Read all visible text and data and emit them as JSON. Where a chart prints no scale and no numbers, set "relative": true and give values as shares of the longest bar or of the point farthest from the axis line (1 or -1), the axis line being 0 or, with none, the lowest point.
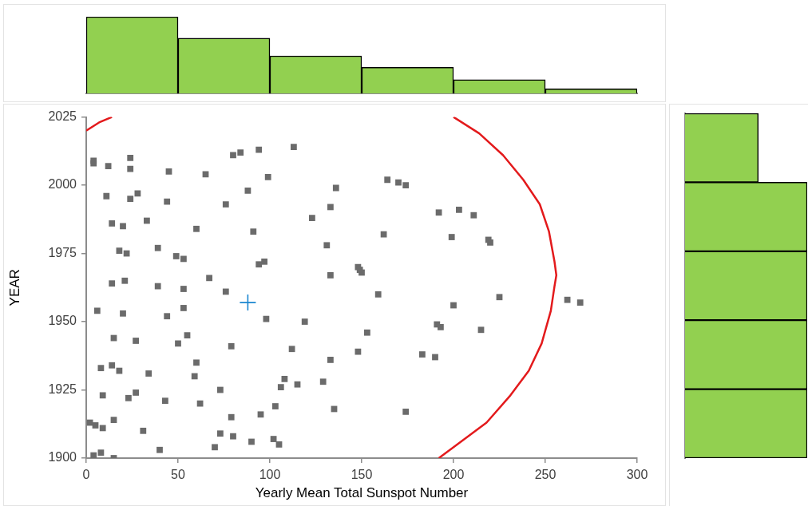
{
  "chart_data": [
    {
      "type": "bar",
      "categories": [
        null,
        null,
        null,
        null,
        null,
        null
      ],
      "values": [
        1,
        0.72,
        0.49,
        0.34,
        0.18,
        0.06
      ],
      "relative": true,
      "color": "#92d050"
    },
    {
      "type": "scatter",
      "xlabel": "Yearly Mean Total Sunspot Number",
      "ylabel": "YEAR",
      "xlim": [
        0,
        300
      ],
      "xticks": [
        0,
        50,
        100,
        150,
        200,
        250,
        300
      ],
      "ylim": [
        1900,
        2025
      ],
      "yticks": [
        1900,
        1925,
        1950,
        1975,
        2000,
        2025
      ],
      "grid": false,
      "legend": false,
      "series": [
        {
          "type": "scatter",
          "color": "#6b6b6b",
          "marker": "square",
          "x": [
            15,
            4,
            8,
            40,
            70,
            105,
            90,
            102,
            80,
            73,
            31,
            9,
            5,
            2,
            15,
            79,
            95,
            174,
            135,
            103,
            62,
            43,
            23,
            9,
            27,
            73,
            106,
            115,
            129,
            108,
            59,
            34,
            18,
            8,
            14,
            60,
            133,
            190,
            183,
            148,
            112,
            79,
            50,
            27,
            15,
            55,
            153,
            215,
            193,
            191,
            119,
            98,
            44,
            20,
            6,
            53,
            200,
            269,
            262,
            225,
            159,
            76,
            53,
            39,
            14,
            21,
            67,
            133,
            150,
            149,
            148,
            94,
            97,
            53,
            49,
            22,
            18,
            39,
            131,
            220,
            219,
            199,
            162,
            91,
            60,
            20,
            14,
            33,
            123,
            211,
            192,
            203,
            133,
            76,
            44,
            24,
            11,
            28,
            88,
            136,
            174,
            170,
            164,
            99,
            65,
            45,
            24,
            12,
            4,
            4,
            24,
            80,
            84,
            94,
            113
          ],
          "values": [
            1900,
            1901,
            1902,
            1903,
            1904,
            1905,
            1906,
            1907,
            1908,
            1909,
            1910,
            1911,
            1912,
            1913,
            1914,
            1915,
            1916,
            1917,
            1918,
            1919,
            1920,
            1921,
            1922,
            1923,
            1924,
            1925,
            1926,
            1927,
            1928,
            1929,
            1930,
            1931,
            1932,
            1933,
            1934,
            1935,
            1936,
            1937,
            1938,
            1939,
            1940,
            1941,
            1942,
            1943,
            1944,
            1945,
            1946,
            1947,
            1948,
            1949,
            1950,
            1951,
            1952,
            1953,
            1954,
            1955,
            1956,
            1957,
            1958,
            1959,
            1960,
            1961,
            1962,
            1963,
            1964,
            1965,
            1966,
            1967,
            1968,
            1969,
            1970,
            1971,
            1972,
            1973,
            1974,
            1975,
            1976,
            1977,
            1978,
            1979,
            1980,
            1981,
            1982,
            1983,
            1984,
            1985,
            1986,
            1987,
            1988,
            1989,
            1990,
            1991,
            1992,
            1993,
            1994,
            1995,
            1996,
            1997,
            1998,
            1999,
            2000,
            2001,
            2002,
            2003,
            2004,
            2005,
            2006,
            2007,
            2008,
            2009,
            2010,
            2011,
            2012,
            2013,
            2014
          ]
        },
        {
          "type": "line",
          "color": "#e31a1c",
          "marker": "none",
          "x": [
            0,
            7,
            14,
            100,
            200,
            214,
            227,
            238,
            247,
            252,
            255,
            256,
            255,
            253,
            248,
            241,
            231,
            218,
            204,
            192
          ],
          "values": [
            2020,
            2023,
            2025,
            null,
            2025,
            2019,
            2011,
            2002,
            1993,
            1983,
            1972,
            1967,
            1963,
            1954,
            1942,
            1932,
            1923,
            1913,
            1906,
            1900
          ]
        },
        {
          "type": "scatter",
          "color": "#1a86d0",
          "marker": "cross",
          "x": [
            88
          ],
          "values": [
            1957
          ]
        }
      ]
    },
    {
      "type": "bar",
      "orientation": "horizontal",
      "categories": [
        null,
        null,
        null,
        null,
        null
      ],
      "values": [
        0.6,
        1,
        1,
        1,
        1
      ],
      "relative": true,
      "color": "#92d050"
    }
  ]
}
